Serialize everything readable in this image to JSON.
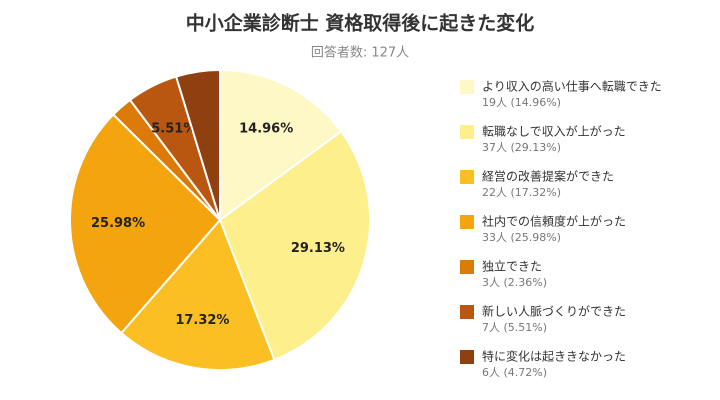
{
  "chart_data": {
    "type": "pie",
    "title": "中小企業診断士 資格取得後に起きた変化",
    "subtitle": "回答者数: 127人",
    "categories": [
      "より収入の高い仕事へ転職できた",
      "転職なしで収入が上がった",
      "経営の改善提案ができた",
      "社内での信頼度が上がった",
      "独立できた",
      "新しい人脈づくりができた",
      "特に変化は起ききなかった"
    ],
    "values": [
      14.96,
      29.13,
      17.32,
      25.98,
      2.36,
      5.51,
      4.72
    ],
    "value_labels": [
      "14.96%",
      "29.13%",
      "17.32%",
      "25.98%",
      null,
      "5.51%",
      null
    ],
    "legend_details": [
      "19人 (14.96%)",
      "37人 (29.13%)",
      "22人 (17.32%)",
      "33人 (25.98%)",
      "3人 (2.36%)",
      "7人 (5.51%)",
      "6人 (4.72%)"
    ],
    "colors": [
      "#fef7c6",
      "#fdef8c",
      "#fbbf24",
      "#f4a40e",
      "#dc7a08",
      "#b9560f",
      "#8f3f10"
    ],
    "legend": "right"
  }
}
